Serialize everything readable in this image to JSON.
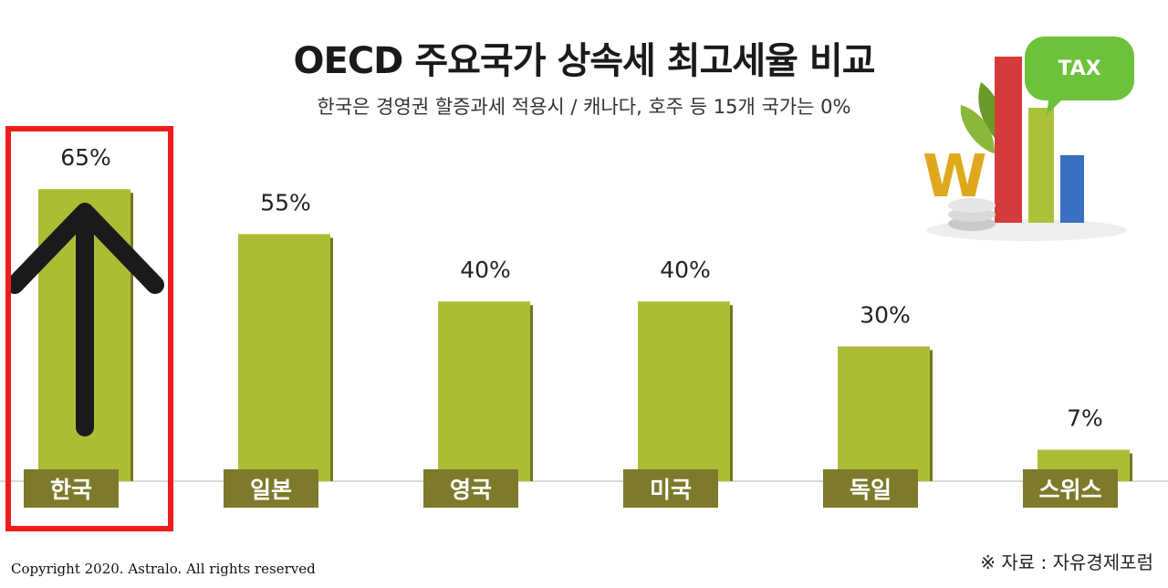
{
  "title": "OECD 주요국가 상속세 최고세율 비교",
  "subtitle": "한국은 경영권 할증과세 적용시 / 캐나다, 호주 등 15개 국가는 0%",
  "source": "※ 자료 : 자유경제포럼",
  "copyright": "Copyright 2020. Astralo. All rights reserved",
  "decoration": {
    "tax_bubble_label": "TAX",
    "won_symbol": "W"
  },
  "colors": {
    "bar": "#acbd35",
    "bar_shadow": "#6e7a22",
    "label_bg": "#7d7a2b",
    "highlight": "#ee1c1c",
    "arrow": "#1a1a1a"
  },
  "chart_data": {
    "type": "bar",
    "title": "OECD 주요국가 상속세 최고세율 비교",
    "categories": [
      "한국",
      "일본",
      "영국",
      "미국",
      "독일",
      "스위스"
    ],
    "values": [
      65,
      55,
      40,
      40,
      30,
      7
    ],
    "value_labels": [
      "65%",
      "55%",
      "40%",
      "40%",
      "30%",
      "7%"
    ],
    "unit": "%",
    "ylim": [
      0,
      70
    ],
    "grid": false,
    "highlighted_category": "한국"
  }
}
